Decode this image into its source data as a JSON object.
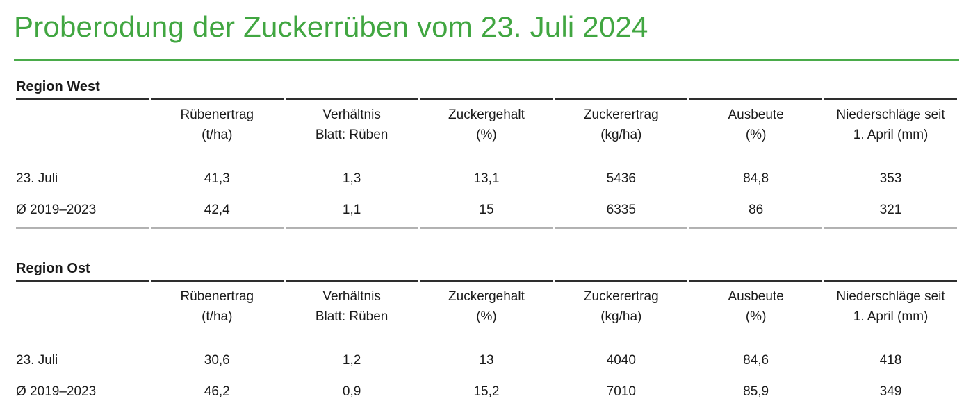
{
  "page": {
    "title": "Proberodung der Zuckerrüben vom 23. Juli 2024",
    "accent_color": "#41a641"
  },
  "columns": [
    {
      "line1": "Rübenertrag",
      "line2": "(t/ha)"
    },
    {
      "line1": "Verhältnis",
      "line2": "Blatt: Rüben"
    },
    {
      "line1": "Zuckergehalt",
      "line2": "(%)"
    },
    {
      "line1": "Zuckerertrag",
      "line2": "(kg/ha)"
    },
    {
      "line1": "Ausbeute",
      "line2": "(%)"
    },
    {
      "line1": "Niederschläge seit",
      "line2": "1. April (mm)"
    }
  ],
  "tables": [
    {
      "region": "Region West",
      "rows": [
        {
          "label": "23. Juli",
          "values": [
            "41,3",
            "1,3",
            "13,1",
            "5436",
            "84,8",
            "353"
          ]
        },
        {
          "label": "Ø 2019–2023",
          "values": [
            "42,4",
            "1,1",
            "15",
            "6335",
            "86",
            "321"
          ]
        }
      ]
    },
    {
      "region": "Region Ost",
      "rows": [
        {
          "label": "23. Juli",
          "values": [
            "30,6",
            "1,2",
            "13",
            "4040",
            "84,6",
            "418"
          ]
        },
        {
          "label": "Ø 2019–2023",
          "values": [
            "46,2",
            "0,9",
            "15,2",
            "7010",
            "85,9",
            "349"
          ]
        }
      ]
    }
  ]
}
